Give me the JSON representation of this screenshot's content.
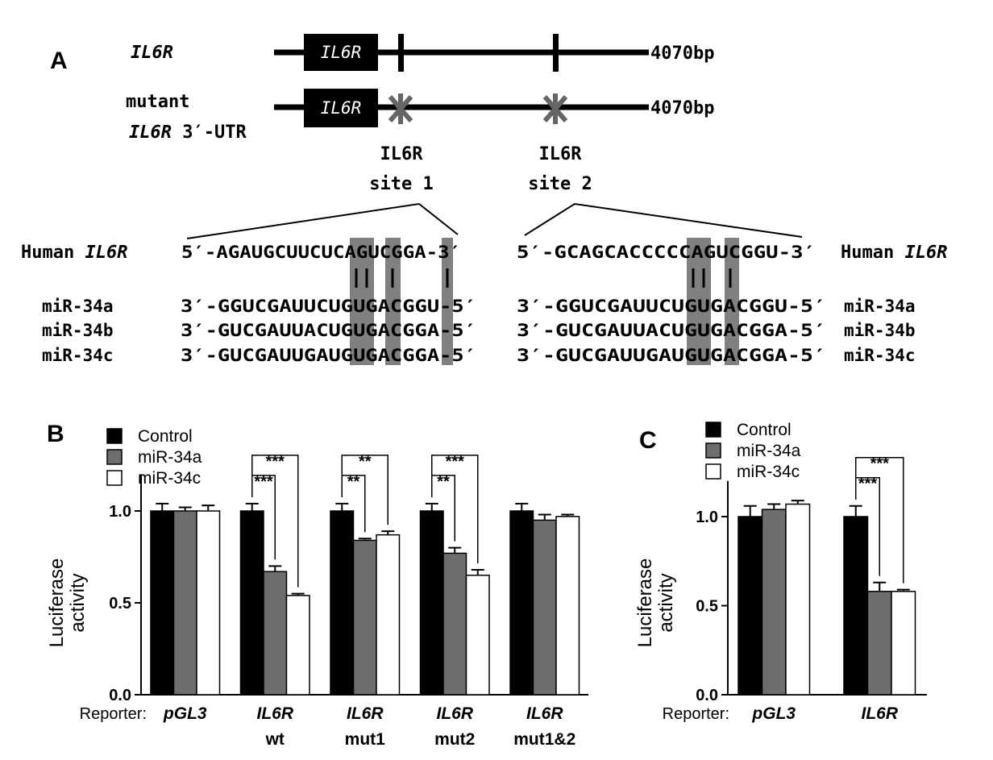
{
  "panel_a": {
    "label": "A",
    "construct_wt": {
      "name": "IL6R",
      "box_label": "IL6R",
      "length": "4070bp"
    },
    "construct_mut": {
      "name_line1": "mutant",
      "name_line2_gene": "IL6R",
      "name_line2_rest": " 3′-UTR",
      "box_label": "IL6R",
      "length": "4070bp"
    },
    "site1": {
      "line1": "IL6R",
      "line2": "site 1"
    },
    "site2": {
      "line1": "IL6R",
      "line2": "site 2"
    },
    "left_block": {
      "target_label_species": "Human ",
      "target_label_gene": "IL6R",
      "target_seq": "5′-AGAUGCUUCUCAGUCGGA-3′",
      "mirs": [
        {
          "name": "miR-34a",
          "seq": "3′-GGUCGAUUCUGUGACGGU-5′"
        },
        {
          "name": "miR-34b",
          "seq": "3′-GUCGAUUACUGUGACGGA-5′"
        },
        {
          "name": "miR-34c",
          "seq": "3′-GUCGAUUGAUGUGACGGA-5′"
        }
      ]
    },
    "right_block": {
      "target_seq": "5′-GCAGCACCCCCAGUCGGU-3′",
      "target_label_species": "Human ",
      "target_label_gene": "IL6R",
      "mirs": [
        {
          "name": "miR-34a",
          "seq": "3′-GGUCGAUUCUGUGACGGU-5′"
        },
        {
          "name": "miR-34b",
          "seq": "3′-GUCGAUUACUGUGACGGA-5′"
        },
        {
          "name": "miR-34c",
          "seq": "3′-GUCGAUUGAUGUGACGGA-5′"
        }
      ]
    }
  },
  "panel_b": {
    "label": "B"
  },
  "panel_c": {
    "label": "C"
  },
  "chart_data": [
    {
      "type": "bar",
      "panel": "B",
      "ylabel": "Luciferase\nactivity",
      "ylim": [
        0,
        1.2
      ],
      "yticks": [
        "0.0",
        "0.5",
        "1.0"
      ],
      "reporter_label": "Reporter:",
      "categories": [
        {
          "line1": "pGL3",
          "line2": ""
        },
        {
          "line1": "IL6R",
          "line2": "wt"
        },
        {
          "line1": "IL6R",
          "line2": "mut1"
        },
        {
          "line1": "IL6R",
          "line2": "mut2"
        },
        {
          "line1": "IL6R",
          "line2": "mut1&2"
        }
      ],
      "series": [
        {
          "name": "Control",
          "color": "#000000",
          "values": [
            1.0,
            1.0,
            1.0,
            1.0,
            1.0
          ],
          "errors": [
            0.04,
            0.04,
            0.04,
            0.04,
            0.04
          ]
        },
        {
          "name": "miR-34a",
          "color": "#6e6e6e",
          "values": [
            1.0,
            0.67,
            0.84,
            0.77,
            0.95
          ],
          "errors": [
            0.02,
            0.03,
            0.01,
            0.03,
            0.03
          ]
        },
        {
          "name": "miR-34c",
          "color": "#ffffff",
          "values": [
            1.0,
            0.54,
            0.87,
            0.65,
            0.97
          ],
          "errors": [
            0.03,
            0.01,
            0.02,
            0.03,
            0.01
          ]
        }
      ],
      "legend": "top-left",
      "significance": [
        {
          "group": 1,
          "pairs": [
            [
              "Control",
              "miR-34a",
              "***"
            ],
            [
              "Control",
              "miR-34c",
              "***"
            ]
          ]
        },
        {
          "group": 2,
          "pairs": [
            [
              "Control",
              "miR-34a",
              "**"
            ],
            [
              "Control",
              "miR-34c",
              "**"
            ]
          ]
        },
        {
          "group": 3,
          "pairs": [
            [
              "Control",
              "miR-34a",
              "**"
            ],
            [
              "Control",
              "miR-34c",
              "***"
            ]
          ]
        }
      ]
    },
    {
      "type": "bar",
      "panel": "C",
      "ylabel": "Luciferase\nactivity",
      "ylim": [
        0,
        1.2
      ],
      "yticks": [
        "0.0",
        "0.5",
        "1.0"
      ],
      "reporter_label": "Reporter:",
      "categories": [
        {
          "line1": "pGL3",
          "line2": ""
        },
        {
          "line1": "IL6R",
          "line2": ""
        }
      ],
      "series": [
        {
          "name": "Control",
          "color": "#000000",
          "values": [
            1.0,
            1.0
          ],
          "errors": [
            0.06,
            0.06
          ]
        },
        {
          "name": "miR-34a",
          "color": "#6e6e6e",
          "values": [
            1.04,
            0.58
          ],
          "errors": [
            0.03,
            0.05
          ]
        },
        {
          "name": "miR-34c",
          "color": "#ffffff",
          "values": [
            1.07,
            0.58
          ],
          "errors": [
            0.02,
            0.01
          ]
        }
      ],
      "legend": "top-left",
      "significance": [
        {
          "group": 1,
          "pairs": [
            [
              "Control",
              "miR-34a",
              "***"
            ],
            [
              "Control",
              "miR-34c",
              "***"
            ]
          ]
        }
      ]
    }
  ]
}
